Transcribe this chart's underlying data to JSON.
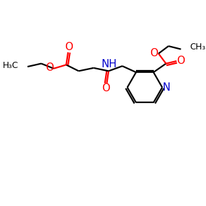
{
  "background_color": "#ffffff",
  "bond_color": "#000000",
  "oxygen_color": "#ff0000",
  "nitrogen_color": "#0000cc",
  "line_width": 1.6,
  "figsize": [
    3.0,
    3.0
  ],
  "dpi": 100,
  "xlim": [
    0,
    300
  ],
  "ylim": [
    0,
    300
  ]
}
